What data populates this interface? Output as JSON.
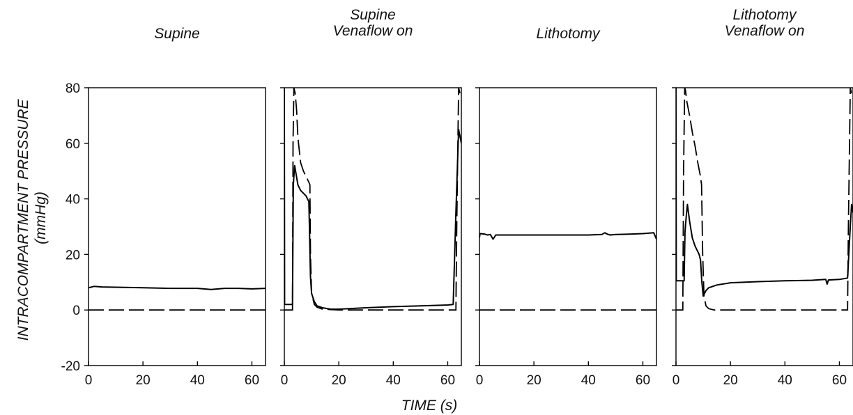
{
  "figure": {
    "ylabel_line1": "INTRACOMPARTMENT PRESSURE",
    "ylabel_line2": "(mmHg)",
    "xlabel": "TIME (s)"
  },
  "chart_data": [
    {
      "type": "line",
      "title_lines": [
        "Supine"
      ],
      "xlim": [
        0,
        65
      ],
      "ylim": [
        -20,
        80
      ],
      "xticks": [
        0,
        20,
        40,
        60
      ],
      "yticks": [
        -20,
        0,
        20,
        40,
        60,
        80
      ],
      "series": [
        {
          "style": "solid",
          "x": [
            0,
            2,
            5,
            10,
            20,
            30,
            40,
            45,
            50,
            55,
            60,
            65
          ],
          "y": [
            8,
            8.5,
            8.3,
            8.2,
            8,
            7.8,
            7.8,
            7.4,
            7.8,
            7.8,
            7.6,
            7.8
          ]
        },
        {
          "style": "dashed",
          "x": [
            0,
            65
          ],
          "y": [
            0,
            0
          ]
        }
      ]
    },
    {
      "type": "line",
      "title_lines": [
        "Supine",
        "Venaflow on"
      ],
      "xlim": [
        0,
        65
      ],
      "ylim": [
        -20,
        80
      ],
      "xticks": [
        0,
        20,
        40,
        60
      ],
      "yticks": [
        -20,
        0,
        20,
        40,
        60,
        80
      ],
      "series": [
        {
          "style": "solid",
          "x": [
            0,
            0.1,
            0.3,
            3,
            3.3,
            3.8,
            4.3,
            5,
            6,
            7,
            8,
            8.5,
            9,
            9.2,
            9.6,
            10,
            11,
            12,
            14,
            17,
            20,
            30,
            40,
            50,
            60,
            62,
            63,
            64,
            65
          ],
          "y": [
            80,
            2,
            2,
            2,
            45,
            52,
            49,
            45,
            43,
            42,
            41,
            40,
            39,
            30,
            12,
            6,
            3,
            1.5,
            0.8,
            0.3,
            0.3,
            0.8,
            1.2,
            1.5,
            1.8,
            2,
            35,
            65,
            60
          ]
        },
        {
          "style": "dashed",
          "x": [
            0,
            3,
            3.2,
            3.5,
            4,
            4.5,
            5,
            6,
            7,
            8,
            9,
            9.4,
            9.6,
            10,
            11,
            12,
            14,
            20,
            63,
            63.3,
            64,
            64.5
          ],
          "y": [
            0,
            0,
            60,
            80,
            78,
            72,
            62,
            53,
            50,
            48,
            46,
            45,
            20,
            6,
            2,
            1,
            0.3,
            0,
            0,
            30,
            80,
            78
          ]
        }
      ]
    },
    {
      "type": "line",
      "title_lines": [
        "Lithotomy"
      ],
      "xlim": [
        0,
        65
      ],
      "ylim": [
        -20,
        80
      ],
      "xticks": [
        0,
        20,
        40,
        60
      ],
      "yticks": [
        -20,
        0,
        20,
        40,
        60,
        80
      ],
      "series": [
        {
          "style": "solid",
          "x": [
            0,
            0.2,
            2,
            3,
            4,
            5,
            6,
            8,
            10,
            20,
            30,
            40,
            45,
            46,
            47,
            48,
            50,
            55,
            60,
            64,
            65
          ],
          "y": [
            26,
            27.5,
            27.3,
            27,
            27.2,
            25.5,
            27,
            27,
            27,
            27,
            27,
            27,
            27.2,
            27.8,
            27.3,
            27,
            27.2,
            27.3,
            27.5,
            27.8,
            25.5
          ]
        },
        {
          "style": "dashed",
          "x": [
            0,
            65
          ],
          "y": [
            0,
            0
          ]
        }
      ]
    },
    {
      "type": "line",
      "title_lines": [
        "Lithotomy",
        "Venaflow on"
      ],
      "xlim": [
        0,
        65
      ],
      "ylim": [
        -20,
        80
      ],
      "xticks": [
        0,
        20,
        40,
        60
      ],
      "yticks": [
        -20,
        0,
        20,
        40,
        60,
        80
      ],
      "series": [
        {
          "style": "solid",
          "x": [
            0,
            0.1,
            0.3,
            3,
            3.3,
            3.7,
            4.2,
            5,
            6,
            7,
            8,
            8.5,
            9,
            9.5,
            10,
            11,
            12,
            15,
            20,
            30,
            40,
            50,
            55,
            55.5,
            56,
            60,
            63,
            64,
            64.5,
            65
          ],
          "y": [
            80,
            10.5,
            10.5,
            10.5,
            28,
            33,
            38,
            32,
            26,
            23,
            21,
            20,
            18,
            10,
            5,
            7,
            8,
            9,
            9.8,
            10.2,
            10.5,
            10.7,
            11,
            9.3,
            10.8,
            11,
            11.5,
            30,
            38,
            35
          ]
        },
        {
          "style": "dashed",
          "x": [
            0,
            2.5,
            2.8,
            3.2,
            3.5,
            4,
            5,
            6,
            7,
            8,
            9,
            9.4,
            9.8,
            10.3,
            11,
            12,
            14,
            20,
            63,
            63.3,
            64,
            64.5
          ],
          "y": [
            0,
            0,
            50,
            80,
            79,
            75,
            70,
            64,
            59,
            53,
            48,
            45,
            20,
            5,
            1.5,
            0.5,
            0,
            0,
            0,
            30,
            80,
            78
          ]
        }
      ]
    }
  ]
}
